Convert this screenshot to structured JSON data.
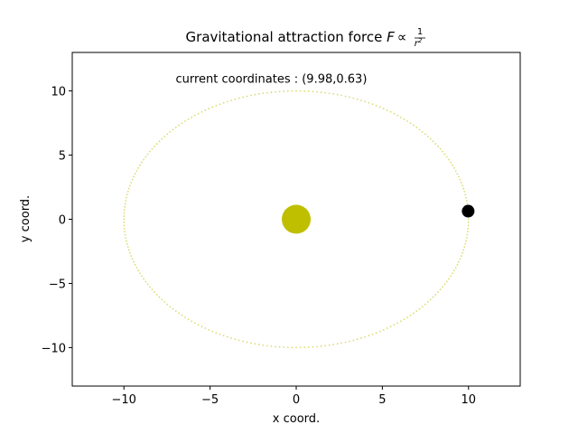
{
  "chart_data": {
    "type": "scatter",
    "title": {
      "text": "Gravitational attraction force ",
      "math_F": "F",
      "math_prop": "∝",
      "math_num": "1",
      "math_den": "r",
      "math_den_exp": "2"
    },
    "xlabel": "x coord.",
    "ylabel": "y coord.",
    "xlim": [
      -13,
      13
    ],
    "ylim": [
      -13,
      13
    ],
    "xticks": [
      -10,
      -5,
      0,
      5,
      10
    ],
    "yticks": [
      -10,
      -5,
      0,
      5,
      10
    ],
    "xtick_labels": [
      "−10",
      "−5",
      "0",
      "5",
      "10"
    ],
    "ytick_labels": [
      "−10",
      "−5",
      "0",
      "5",
      "10"
    ],
    "grid": false,
    "annotation": "current coordinates : (9.98,0.63)",
    "annotation_position": {
      "x": -7,
      "y": 11
    },
    "orbit": {
      "shape": "circle",
      "center": [
        0,
        0
      ],
      "radius": 10,
      "style": "dotted",
      "color": "#bfbf00"
    },
    "sun": {
      "x": 0,
      "y": 0,
      "color": "#bfbf00"
    },
    "planet": {
      "x": 9.98,
      "y": 0.63,
      "color": "#000000"
    }
  }
}
